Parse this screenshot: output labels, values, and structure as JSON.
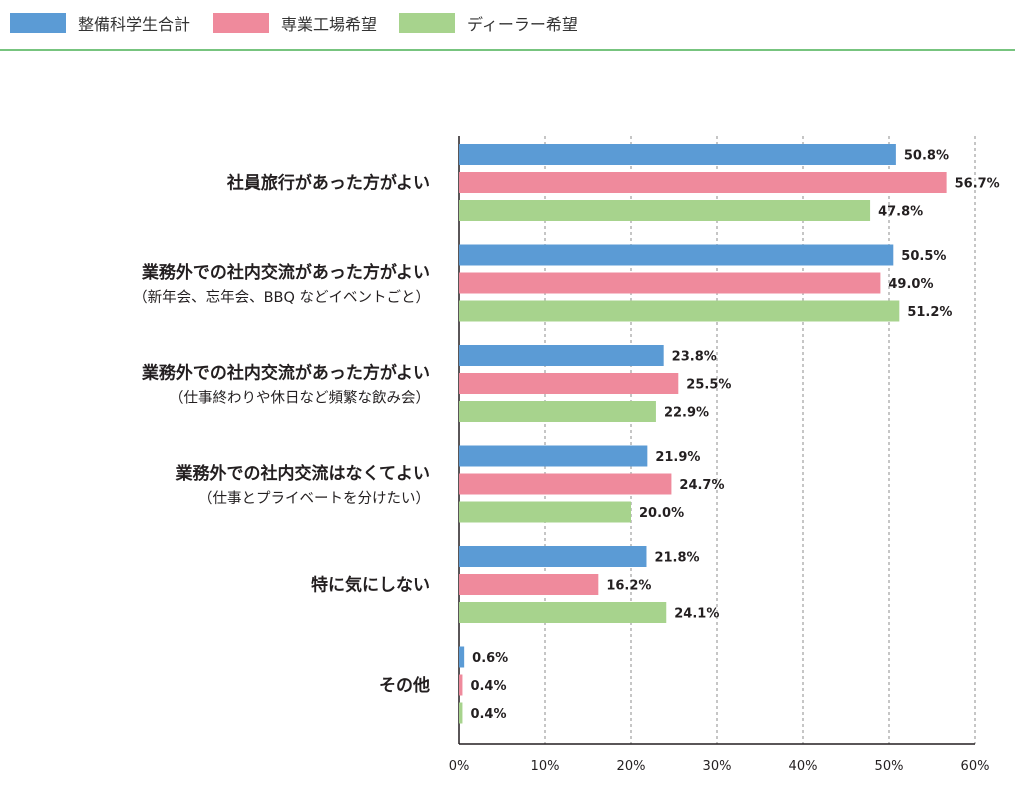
{
  "legend": [
    {
      "label": "整備科学生合計",
      "color": "#5b9bd5"
    },
    {
      "label": "専業工場希望",
      "color": "#ef8a9c"
    },
    {
      "label": "ディーラー希望",
      "color": "#a7d38d"
    }
  ],
  "chart_data": {
    "type": "bar",
    "orientation": "horizontal",
    "title": "",
    "xlabel": "",
    "ylabel": "",
    "xlim": [
      0,
      60
    ],
    "xticks": [
      "0%",
      "10%",
      "20%",
      "30%",
      "40%",
      "50%",
      "60%"
    ],
    "grid": "vertical dashed",
    "legend_position": "top-left",
    "categories": [
      {
        "label": "社員旅行があった方がよい",
        "sub": ""
      },
      {
        "label": "業務外での社内交流があった方がよい",
        "sub": "（新年会、忘年会、BBQ などイベントごと）"
      },
      {
        "label": "業務外での社内交流があった方がよい",
        "sub": "（仕事終わりや休日など頻繁な飲み会）"
      },
      {
        "label": "業務外での社内交流はなくてよい",
        "sub": "（仕事とプライベートを分けたい）"
      },
      {
        "label": "特に気にしない",
        "sub": ""
      },
      {
        "label": "その他",
        "sub": ""
      }
    ],
    "series": [
      {
        "name": "整備科学生合計",
        "color": "#5b9bd5",
        "values": [
          50.8,
          50.5,
          23.8,
          21.9,
          21.8,
          0.6
        ],
        "labels": [
          "50.8%",
          "50.5%",
          "23.8%",
          "21.9%",
          "21.8%",
          "0.6%"
        ]
      },
      {
        "name": "専業工場希望",
        "color": "#ef8a9c",
        "values": [
          56.7,
          49.0,
          25.5,
          24.7,
          16.2,
          0.4
        ],
        "labels": [
          "56.7%",
          "49.0%",
          "25.5%",
          "24.7%",
          "16.2%",
          "0.4%"
        ]
      },
      {
        "name": "ディーラー希望",
        "color": "#a7d38d",
        "values": [
          47.8,
          51.2,
          22.9,
          20.0,
          24.1,
          0.4
        ],
        "labels": [
          "47.8%",
          "51.2%",
          "22.9%",
          "20.0%",
          "24.1%",
          "0.4%"
        ]
      }
    ]
  }
}
